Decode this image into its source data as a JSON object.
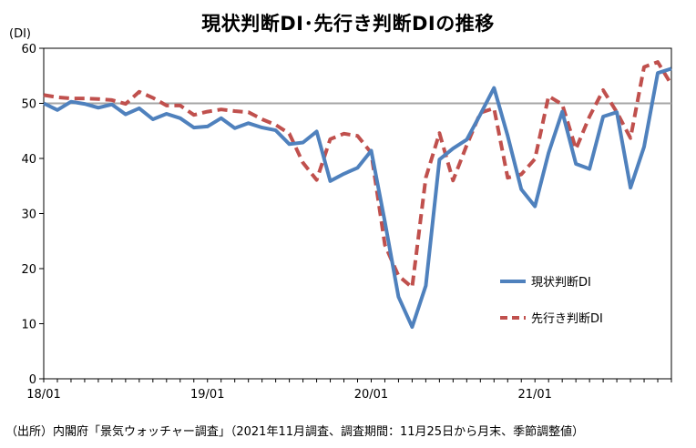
{
  "title": "現状判断DI･先行き判断DIの推移",
  "unit_label": "(DI)",
  "source_note": "（出所）内閣府「景気ウォッチャー調査」（2021年11月調査、調査期間：11月25日から月末、季節調整値）",
  "colors": {
    "current": "#4f81bd",
    "outlook": "#c0504d",
    "reference_line": "#a6a6a6",
    "axis": "#000000"
  },
  "chart_data": {
    "type": "line",
    "title": "現状判断DI･先行き判断DIの推移",
    "ylabel": "(DI)",
    "xlabel": "",
    "ylim": [
      0,
      60
    ],
    "yticks": [
      0,
      10,
      20,
      30,
      40,
      50,
      60
    ],
    "x": [
      "2018-01",
      "2018-02",
      "2018-03",
      "2018-04",
      "2018-05",
      "2018-06",
      "2018-07",
      "2018-08",
      "2018-09",
      "2018-10",
      "2018-11",
      "2018-12",
      "2019-01",
      "2019-02",
      "2019-03",
      "2019-04",
      "2019-05",
      "2019-06",
      "2019-07",
      "2019-08",
      "2019-09",
      "2019-10",
      "2019-11",
      "2019-12",
      "2020-01",
      "2020-02",
      "2020-03",
      "2020-04",
      "2020-05",
      "2020-06",
      "2020-07",
      "2020-08",
      "2020-09",
      "2020-10",
      "2020-11",
      "2020-12",
      "2021-01",
      "2021-02",
      "2021-03",
      "2021-04",
      "2021-05",
      "2021-06",
      "2021-07",
      "2021-08",
      "2021-09",
      "2021-10",
      "2021-11"
    ],
    "xtick_labels": [
      "18/01",
      "19/01",
      "20/01",
      "21/01"
    ],
    "xtick_positions": [
      "2018-01",
      "2019-01",
      "2020-01",
      "2021-01"
    ],
    "reference_line": 50,
    "grid": false,
    "legend_position": "lower-right",
    "series": [
      {
        "name": "現状判断DI",
        "style": "solid",
        "values": [
          50.0,
          48.8,
          50.3,
          49.9,
          49.2,
          49.8,
          48.0,
          49.1,
          47.1,
          48.1,
          47.3,
          45.6,
          45.8,
          47.3,
          45.5,
          46.4,
          45.6,
          45.1,
          42.6,
          42.9,
          44.9,
          35.9,
          37.2,
          38.3,
          41.4,
          28.5,
          14.9,
          9.4,
          16.9,
          39.8,
          41.8,
          43.4,
          48.0,
          52.8,
          44.1,
          34.4,
          31.3,
          41.0,
          48.5,
          39.0,
          38.1,
          47.6,
          48.4,
          34.7,
          42.1,
          55.5,
          56.3
        ]
      },
      {
        "name": "先行き判断DI",
        "style": "dashed",
        "values": [
          51.5,
          51.1,
          50.9,
          50.9,
          50.8,
          50.6,
          49.9,
          52.1,
          51.0,
          49.6,
          49.6,
          47.9,
          48.5,
          48.9,
          48.6,
          48.4,
          47.1,
          46.1,
          44.5,
          39.2,
          36.1,
          43.5,
          44.5,
          44.1,
          41.0,
          24.3,
          18.7,
          16.6,
          36.5,
          44.6,
          36.0,
          42.4,
          48.3,
          49.1,
          36.5,
          37.1,
          39.9,
          51.3,
          49.8,
          41.7,
          47.6,
          52.4,
          48.4,
          43.7,
          56.6,
          57.5,
          53.4
        ]
      }
    ]
  }
}
